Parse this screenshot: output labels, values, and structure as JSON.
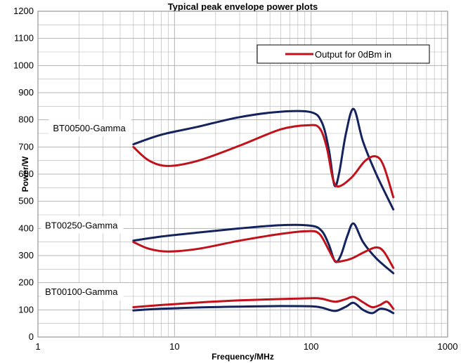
{
  "chart_data": {
    "type": "line",
    "title": "Typical peak envelope power plots",
    "xlabel": "Frequency/MHz",
    "ylabel": "Power/W",
    "x_scale": "log",
    "xlim": [
      1,
      1000
    ],
    "ylim": [
      0,
      1200
    ],
    "x_ticks": [
      1,
      10,
      100,
      1000
    ],
    "y_ticks": [
      0,
      100,
      200,
      300,
      400,
      500,
      600,
      700,
      800,
      900,
      1000,
      1100,
      1200
    ],
    "grid": true,
    "legend": {
      "position": "top-right",
      "entries": [
        "Output for 0dBm in"
      ]
    },
    "colors": {
      "navy": "#14235e",
      "red": "#c1121c",
      "grid": "#b3b3b3"
    },
    "annotations": [
      {
        "text": "BT00500-Gamma",
        "x": 1.2,
        "y": 768
      },
      {
        "text": "BT00250-Gamma",
        "x": 1.05,
        "y": 410
      },
      {
        "text": "BT00100-Gamma",
        "x": 1.05,
        "y": 165
      }
    ],
    "series": [
      {
        "color": "#14235e",
        "x": [
          5,
          8,
          15,
          30,
          60,
          100,
          120,
          135,
          148,
          160,
          180,
          205,
          240,
          300,
          400
        ],
        "y": [
          710,
          745,
          775,
          810,
          830,
          828,
          790,
          690,
          560,
          600,
          750,
          840,
          720,
          600,
          470
        ]
      },
      {
        "color": "#c1121c",
        "x": [
          5,
          6.5,
          9,
          15,
          30,
          60,
          95,
          115,
          130,
          145,
          160,
          200,
          250,
          300,
          340,
          400
        ],
        "y": [
          700,
          650,
          630,
          650,
          705,
          765,
          780,
          770,
          700,
          580,
          555,
          590,
          650,
          665,
          630,
          515
        ]
      },
      {
        "color": "#14235e",
        "x": [
          5,
          8,
          15,
          30,
          60,
          100,
          120,
          135,
          150,
          165,
          185,
          205,
          240,
          300,
          400
        ],
        "y": [
          355,
          370,
          385,
          400,
          412,
          410,
          390,
          340,
          278,
          300,
          375,
          418,
          350,
          290,
          235
        ]
      },
      {
        "color": "#c1121c",
        "x": [
          5,
          6.5,
          9,
          15,
          30,
          60,
          95,
          115,
          135,
          150,
          170,
          200,
          250,
          300,
          340,
          400
        ],
        "y": [
          350,
          325,
          315,
          325,
          355,
          380,
          390,
          380,
          320,
          280,
          280,
          290,
          315,
          330,
          315,
          255
        ]
      },
      {
        "color": "#14235e",
        "x": [
          5,
          8,
          15,
          30,
          60,
          100,
          120,
          150,
          180,
          205,
          240,
          280,
          320,
          360,
          400
        ],
        "y": [
          98,
          104,
          109,
          112,
          114,
          113,
          108,
          96,
          112,
          126,
          100,
          88,
          104,
          100,
          88
        ]
      },
      {
        "color": "#c1121c",
        "x": [
          5,
          8,
          15,
          30,
          60,
          100,
          120,
          150,
          180,
          205,
          240,
          280,
          320,
          360,
          400
        ],
        "y": [
          110,
          118,
          127,
          135,
          140,
          143,
          141,
          130,
          140,
          148,
          128,
          110,
          118,
          130,
          104
        ]
      }
    ]
  }
}
